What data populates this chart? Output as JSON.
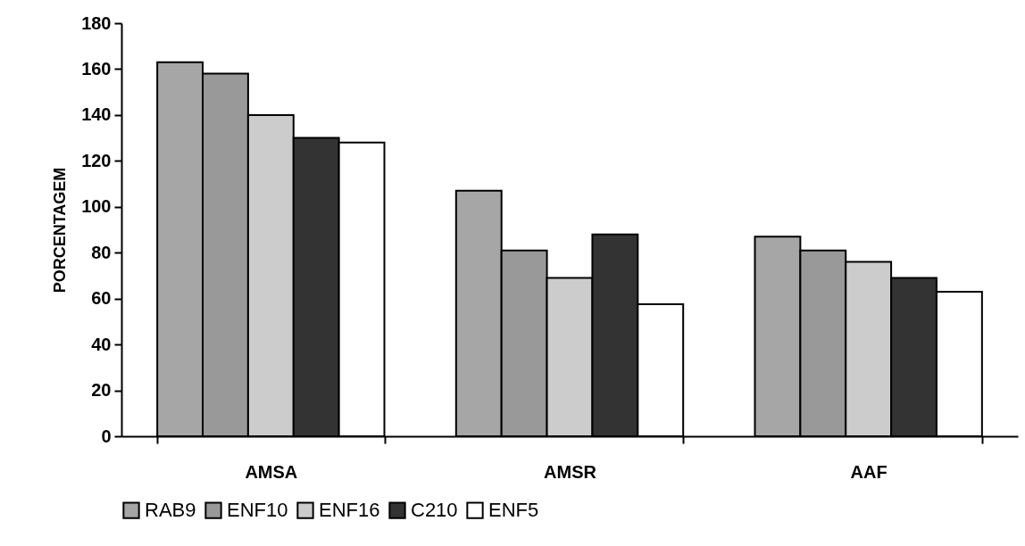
{
  "chart_data": {
    "type": "bar",
    "ylabel": "PORCENTAGEM",
    "categories": [
      "AMSA",
      "AMSR",
      "AAF"
    ],
    "series": [
      {
        "name": "RAB9",
        "color": "#a6a6a6",
        "values": [
          163,
          107,
          87
        ]
      },
      {
        "name": "ENF10",
        "color": "#999999",
        "values": [
          158,
          81,
          81
        ]
      },
      {
        "name": "ENF16",
        "color": "#cccccc",
        "values": [
          140,
          69,
          76
        ]
      },
      {
        "name": "C210",
        "color": "#333333",
        "values": [
          130,
          88,
          69
        ]
      },
      {
        "name": "ENF5",
        "color": "#ffffff",
        "values": [
          128,
          57.5,
          63
        ]
      }
    ],
    "ylim": [
      0,
      180
    ],
    "yticks": [
      0,
      20,
      40,
      60,
      80,
      100,
      120,
      140,
      160,
      180
    ],
    "grid": false,
    "legend": "bottom"
  }
}
